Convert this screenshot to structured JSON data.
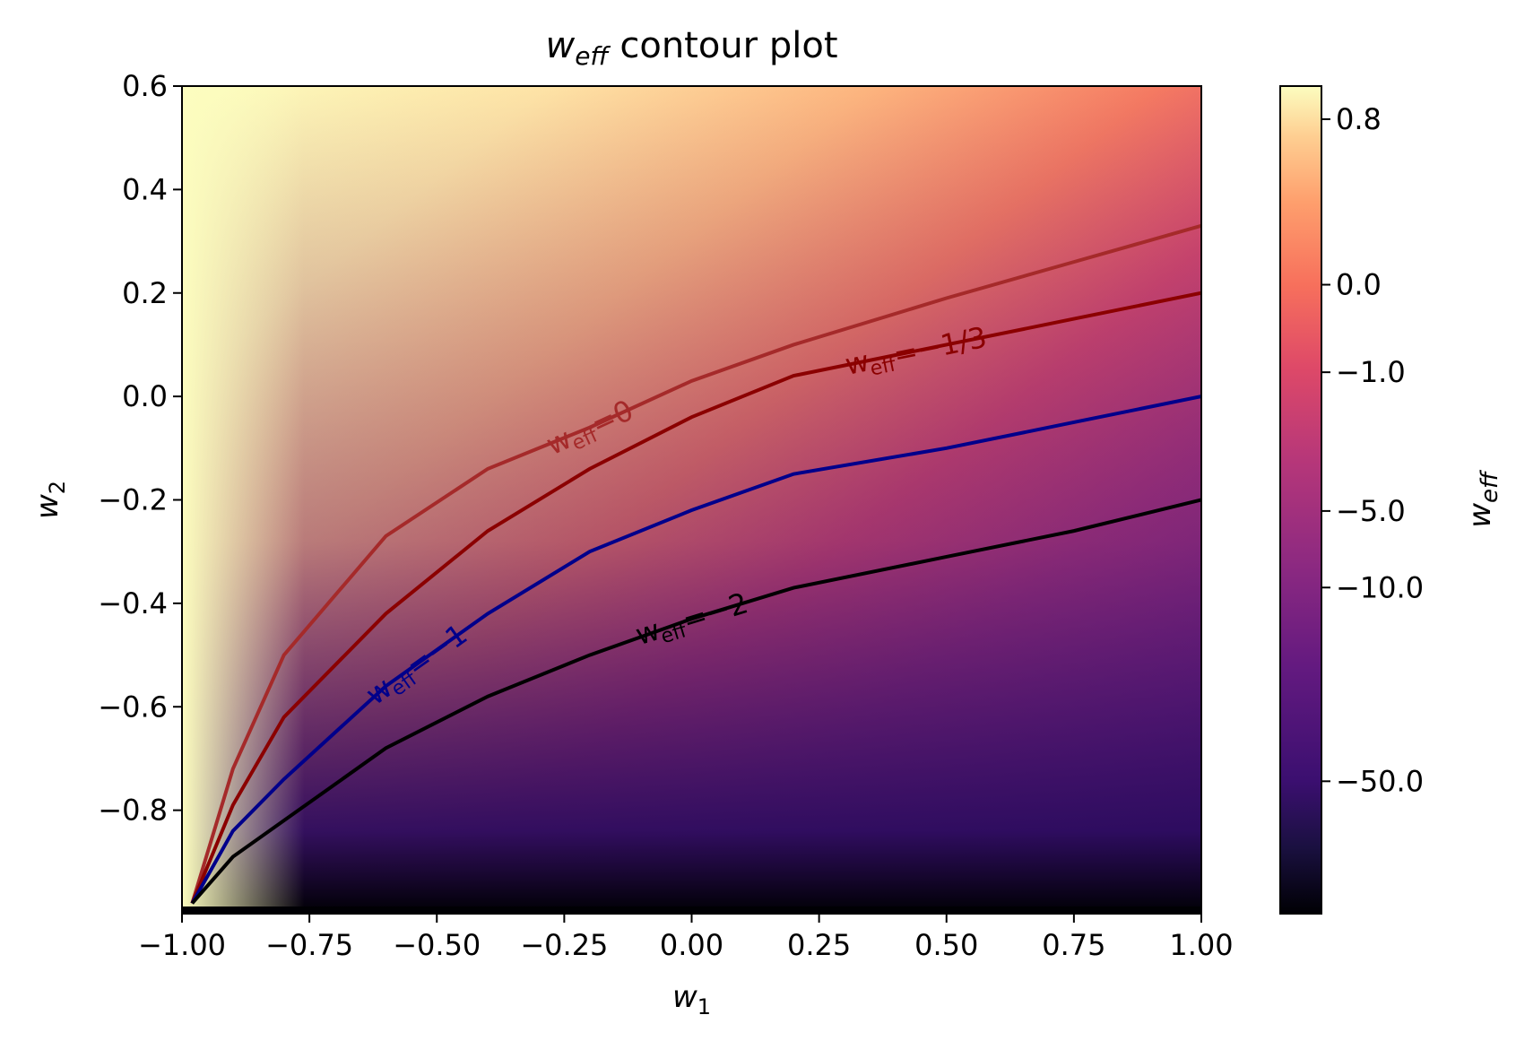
{
  "chart_data": {
    "type": "heatmap",
    "title_main": "w",
    "title_sub": "eff",
    "title_rest": " contour plot",
    "xlabel_main": "w",
    "xlabel_sub": "1",
    "ylabel_main": "w",
    "ylabel_sub": "2",
    "colorbar_label_main": "w",
    "colorbar_label_sub": "eff",
    "xlim": [
      -1.0,
      1.0
    ],
    "ylim": [
      -1.0,
      0.6
    ],
    "x_ticks": [
      {
        "value": -1.0,
        "label": "−1.00"
      },
      {
        "value": -0.75,
        "label": "−0.75"
      },
      {
        "value": -0.5,
        "label": "−0.50"
      },
      {
        "value": -0.25,
        "label": "−0.25"
      },
      {
        "value": 0.0,
        "label": "0.00"
      },
      {
        "value": 0.25,
        "label": "0.25"
      },
      {
        "value": 0.5,
        "label": "0.50"
      },
      {
        "value": 0.75,
        "label": "0.75"
      },
      {
        "value": 1.0,
        "label": "1.00"
      }
    ],
    "y_ticks": [
      {
        "value": 0.6,
        "label": "0.6"
      },
      {
        "value": 0.4,
        "label": "0.4"
      },
      {
        "value": 0.2,
        "label": "0.2"
      },
      {
        "value": 0.0,
        "label": "0.0"
      },
      {
        "value": -0.2,
        "label": "−0.2"
      },
      {
        "value": -0.4,
        "label": "−0.4"
      },
      {
        "value": -0.6,
        "label": "−0.6"
      },
      {
        "value": -0.8,
        "label": "−0.8"
      }
    ],
    "colormap": "magma",
    "colorbar_ticks": [
      {
        "value": 0.8,
        "label": "0.8"
      },
      {
        "value": 0.0,
        "label": "0.0"
      },
      {
        "value": -1.0,
        "label": "−1.0"
      },
      {
        "value": -5.0,
        "label": "−5.0"
      },
      {
        "value": -10.0,
        "label": "−10.0"
      },
      {
        "value": -50.0,
        "label": "−50.0"
      }
    ],
    "contours": [
      {
        "level": 0,
        "label_main": "w",
        "label_sub": "eff",
        "label_rest": "=0",
        "color": "#a52a2a",
        "points": [
          [
            -0.98,
            -0.98
          ],
          [
            -0.9,
            -0.72
          ],
          [
            -0.8,
            -0.5
          ],
          [
            -0.6,
            -0.27
          ],
          [
            -0.4,
            -0.14
          ],
          [
            -0.2,
            -0.06
          ],
          [
            0.0,
            0.03
          ],
          [
            0.2,
            0.1
          ],
          [
            0.5,
            0.19
          ],
          [
            0.75,
            0.26
          ],
          [
            1.0,
            0.33
          ]
        ]
      },
      {
        "level": -0.333,
        "label_main": "w",
        "label_sub": "eff",
        "label_rest": "=−1/3",
        "color": "#8b0000",
        "points": [
          [
            -0.98,
            -0.98
          ],
          [
            -0.9,
            -0.79
          ],
          [
            -0.8,
            -0.62
          ],
          [
            -0.6,
            -0.42
          ],
          [
            -0.4,
            -0.26
          ],
          [
            -0.2,
            -0.14
          ],
          [
            0.0,
            -0.04
          ],
          [
            0.2,
            0.04
          ],
          [
            0.5,
            0.1
          ],
          [
            0.75,
            0.15
          ],
          [
            1.0,
            0.2
          ]
        ]
      },
      {
        "level": -1,
        "label_main": "w",
        "label_sub": "eff",
        "label_rest": "=−1",
        "color": "#00008b",
        "points": [
          [
            -0.98,
            -0.98
          ],
          [
            -0.9,
            -0.84
          ],
          [
            -0.8,
            -0.74
          ],
          [
            -0.6,
            -0.56
          ],
          [
            -0.4,
            -0.42
          ],
          [
            -0.2,
            -0.3
          ],
          [
            0.0,
            -0.22
          ],
          [
            0.2,
            -0.15
          ],
          [
            0.5,
            -0.1
          ],
          [
            0.75,
            -0.05
          ],
          [
            1.0,
            0.0
          ]
        ]
      },
      {
        "level": -2,
        "label_main": "w",
        "label_sub": "eff",
        "label_rest": "=−2",
        "color": "#000000",
        "points": [
          [
            -0.98,
            -0.98
          ],
          [
            -0.9,
            -0.89
          ],
          [
            -0.8,
            -0.82
          ],
          [
            -0.6,
            -0.68
          ],
          [
            -0.4,
            -0.58
          ],
          [
            -0.2,
            -0.5
          ],
          [
            0.0,
            -0.43
          ],
          [
            0.2,
            -0.37
          ],
          [
            0.5,
            -0.31
          ],
          [
            0.75,
            -0.26
          ],
          [
            1.0,
            -0.2
          ]
        ]
      }
    ]
  }
}
